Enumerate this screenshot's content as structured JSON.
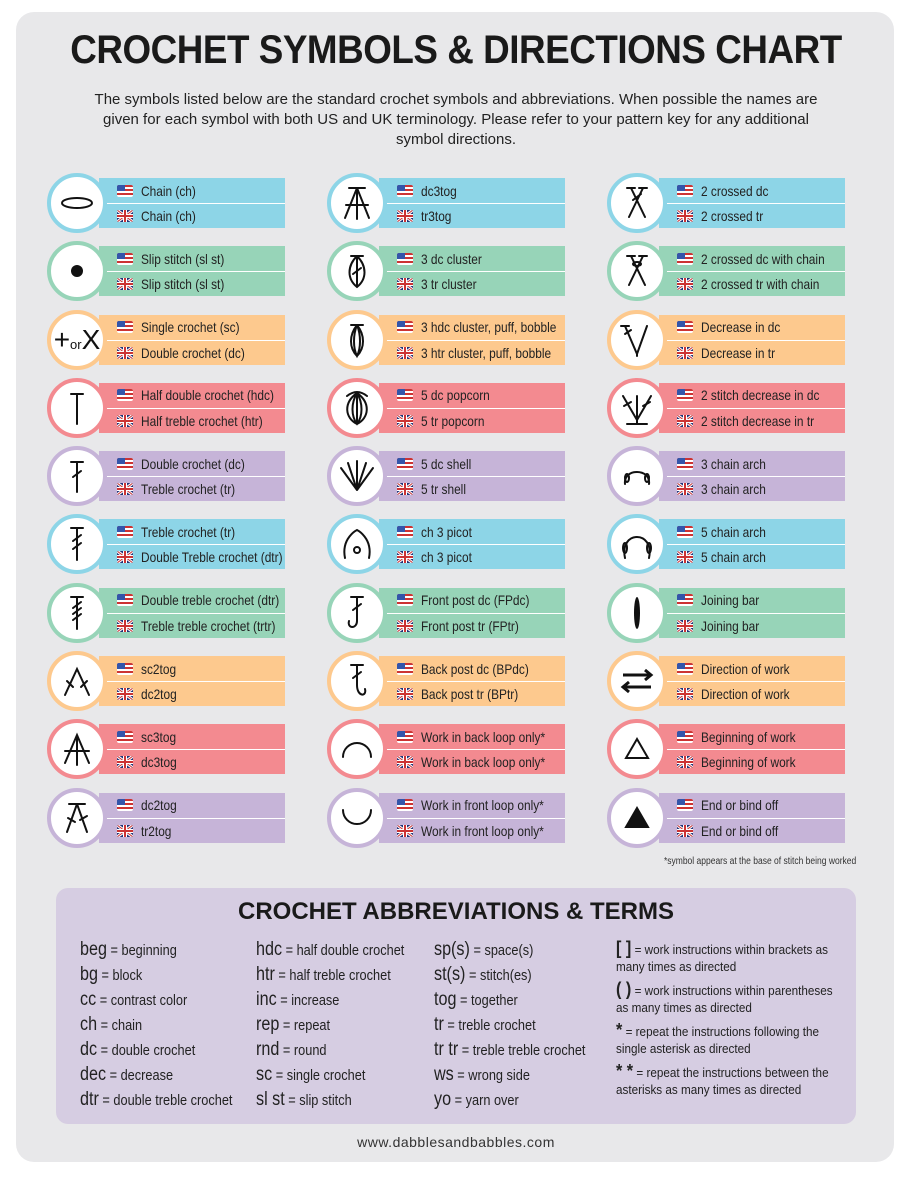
{
  "title": "CROCHET SYMBOLS & DIRECTIONS CHART",
  "intro": "The symbols listed below are the standard crochet symbols and abbreviations. When possible the names are given for each symbol with both US and UK terminology. Please refer to your pattern key for any additional symbol directions.",
  "colors": {
    "blue": "#8dd5e7",
    "green": "#97d4b8",
    "orange": "#fdc98e",
    "red": "#f38a90",
    "purple": "#c6b4d8"
  },
  "columns": [
    [
      {
        "icon": "chain-symbol",
        "color": "blue",
        "us": "Chain (ch)",
        "uk": "Chain (ch)"
      },
      {
        "icon": "slip-stitch-symbol",
        "color": "green",
        "us": "Slip stitch (sl st)",
        "uk": "Slip stitch (sl st)"
      },
      {
        "icon": "single-crochet-symbol",
        "color": "orange",
        "us": "Single crochet (sc)",
        "uk": "Double crochet (dc)",
        "symbol_text": [
          "+",
          "or",
          "X"
        ]
      },
      {
        "icon": "hdc-symbol",
        "color": "red",
        "us": "Half double crochet (hdc)",
        "uk": "Half treble crochet (htr)"
      },
      {
        "icon": "dc-symbol",
        "color": "purple",
        "us": "Double crochet (dc)",
        "uk": "Treble crochet (tr)"
      },
      {
        "icon": "tr-symbol",
        "color": "blue",
        "us": "Treble crochet (tr)",
        "uk": "Double Treble crochet (dtr)"
      },
      {
        "icon": "dtr-symbol",
        "color": "green",
        "us": "Double treble crochet (dtr)",
        "uk": "Treble treble crochet (trtr)"
      },
      {
        "icon": "sc2tog-symbol",
        "color": "orange",
        "us": "sc2tog",
        "uk": "dc2tog"
      },
      {
        "icon": "sc3tog-symbol",
        "color": "red",
        "us": "sc3tog",
        "uk": "dc3tog"
      },
      {
        "icon": "dc2tog-symbol",
        "color": "purple",
        "us": "dc2tog",
        "uk": "tr2tog"
      }
    ],
    [
      {
        "icon": "dc3tog-symbol",
        "color": "blue",
        "us": "dc3tog",
        "uk": "tr3tog"
      },
      {
        "icon": "3dc-cluster-symbol",
        "color": "green",
        "us": "3 dc cluster",
        "uk": "3 tr cluster"
      },
      {
        "icon": "puff-symbol",
        "color": "orange",
        "us": "3 hdc cluster, puff, bobble",
        "uk": "3 htr cluster, puff, bobble"
      },
      {
        "icon": "popcorn-symbol",
        "color": "red",
        "us": "5 dc popcorn",
        "uk": "5 tr popcorn"
      },
      {
        "icon": "shell-symbol",
        "color": "purple",
        "us": "5 dc shell",
        "uk": "5 tr shell"
      },
      {
        "icon": "picot-symbol",
        "color": "blue",
        "us": "ch 3 picot",
        "uk": "ch 3 picot"
      },
      {
        "icon": "front-post-symbol",
        "color": "green",
        "us": "Front post dc (FPdc)",
        "uk": "Front post tr (FPtr)"
      },
      {
        "icon": "back-post-symbol",
        "color": "orange",
        "us": "Back post dc (BPdc)",
        "uk": "Back post tr (BPtr)"
      },
      {
        "icon": "back-loop-symbol",
        "color": "red",
        "us": "Work in back loop only*",
        "uk": "Work in back loop only*"
      },
      {
        "icon": "front-loop-symbol",
        "color": "purple",
        "us": "Work in front loop only*",
        "uk": "Work in front loop only*"
      }
    ],
    [
      {
        "icon": "crossed-dc-symbol",
        "color": "blue",
        "us": "2 crossed dc",
        "uk": "2 crossed tr"
      },
      {
        "icon": "crossed-dc-chain-symbol",
        "color": "green",
        "us": "2 crossed dc with chain",
        "uk": "2 crossed tr with chain"
      },
      {
        "icon": "decrease-symbol",
        "color": "orange",
        "us": "Decrease in dc",
        "uk": "Decrease in tr"
      },
      {
        "icon": "2st-decrease-symbol",
        "color": "red",
        "us": "2 stitch decrease in dc",
        "uk": "2 stitch decrease in tr"
      },
      {
        "icon": "3ch-arch-symbol",
        "color": "purple",
        "us": "3 chain arch",
        "uk": "3 chain arch"
      },
      {
        "icon": "5ch-arch-symbol",
        "color": "blue",
        "us": "5 chain arch",
        "uk": "5 chain arch"
      },
      {
        "icon": "joining-bar-symbol",
        "color": "green",
        "us": "Joining bar",
        "uk": "Joining bar"
      },
      {
        "icon": "direction-arrows-symbol",
        "color": "orange",
        "us": "Direction of work",
        "uk": "Direction of work"
      },
      {
        "icon": "open-triangle-symbol",
        "color": "red",
        "us": "Beginning of work",
        "uk": "Beginning of work"
      },
      {
        "icon": "filled-triangle-symbol",
        "color": "purple",
        "us": "End or bind off",
        "uk": "End or bind off"
      }
    ]
  ],
  "footnote": "*symbol appears at the base of stitch being worked",
  "abbreviations": {
    "title": "CROCHET ABBREVIATIONS & TERMS",
    "columns": [
      [
        [
          "beg",
          "beginning"
        ],
        [
          "bg",
          "block"
        ],
        [
          "cc",
          "contrast color"
        ],
        [
          "ch",
          "chain"
        ],
        [
          "dc",
          "double crochet"
        ],
        [
          "dec",
          "decrease"
        ],
        [
          "dtr",
          "double treble crochet"
        ]
      ],
      [
        [
          "hdc",
          "half double crochet"
        ],
        [
          "htr",
          "half treble crochet"
        ],
        [
          "inc",
          "increase"
        ],
        [
          "rep",
          "repeat"
        ],
        [
          "rnd",
          "round"
        ],
        [
          "sc",
          "single crochet"
        ],
        [
          "sl st",
          "slip stitch"
        ]
      ],
      [
        [
          "sp(s)",
          "space(s)"
        ],
        [
          "st(s)",
          "stitch(es)"
        ],
        [
          "tog",
          "together"
        ],
        [
          "tr",
          "treble crochet"
        ],
        [
          "tr tr",
          "treble treble crochet"
        ],
        [
          "ws",
          "wrong side"
        ],
        [
          "yo",
          "yarn over"
        ]
      ]
    ],
    "symbols": [
      {
        "sym": "[ ]",
        "desc": "= work instructions within brackets as many times as directed"
      },
      {
        "sym": "( )",
        "desc": "= work instructions within parentheses as many times as directed"
      },
      {
        "sym": "*",
        "desc": "= repeat the instructions following the single asterisk as directed"
      },
      {
        "sym": "* *",
        "desc": "= repeat the instructions between the asterisks as many times as directed"
      }
    ]
  },
  "footer": "www.dabblesandbabbles.com"
}
